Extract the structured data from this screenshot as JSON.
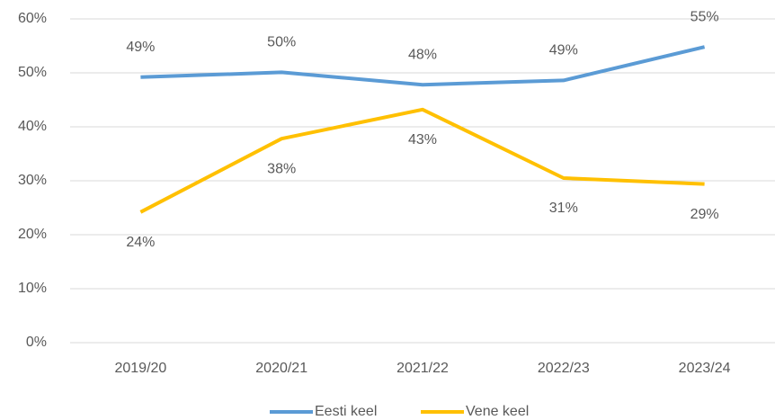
{
  "chart_data": {
    "type": "line",
    "categories": [
      "2019/20",
      "2020/21",
      "2021/22",
      "2022/23",
      "2023/24"
    ],
    "series": [
      {
        "name": "Eesti keel",
        "color": "#5b9bd5",
        "values": [
          49.2,
          50.1,
          47.8,
          48.6,
          54.8
        ],
        "value_labels": [
          "49%",
          "50%",
          "48%",
          "49%",
          "55%"
        ]
      },
      {
        "name": "Vene keel",
        "color": "#ffc000",
        "values": [
          24.2,
          37.8,
          43.2,
          30.5,
          29.4
        ],
        "value_labels": [
          "24%",
          "38%",
          "43%",
          "31%",
          "29%"
        ]
      }
    ],
    "ylim": [
      0,
      60
    ],
    "yticks": [
      {
        "value": 0,
        "label": "0%"
      },
      {
        "value": 10,
        "label": "10%"
      },
      {
        "value": 20,
        "label": "20%"
      },
      {
        "value": 30,
        "label": "30%"
      },
      {
        "value": 40,
        "label": "40%"
      },
      {
        "value": 50,
        "label": "50%"
      },
      {
        "value": 60,
        "label": "60%"
      }
    ],
    "grid": true,
    "legend": "bottom"
  }
}
